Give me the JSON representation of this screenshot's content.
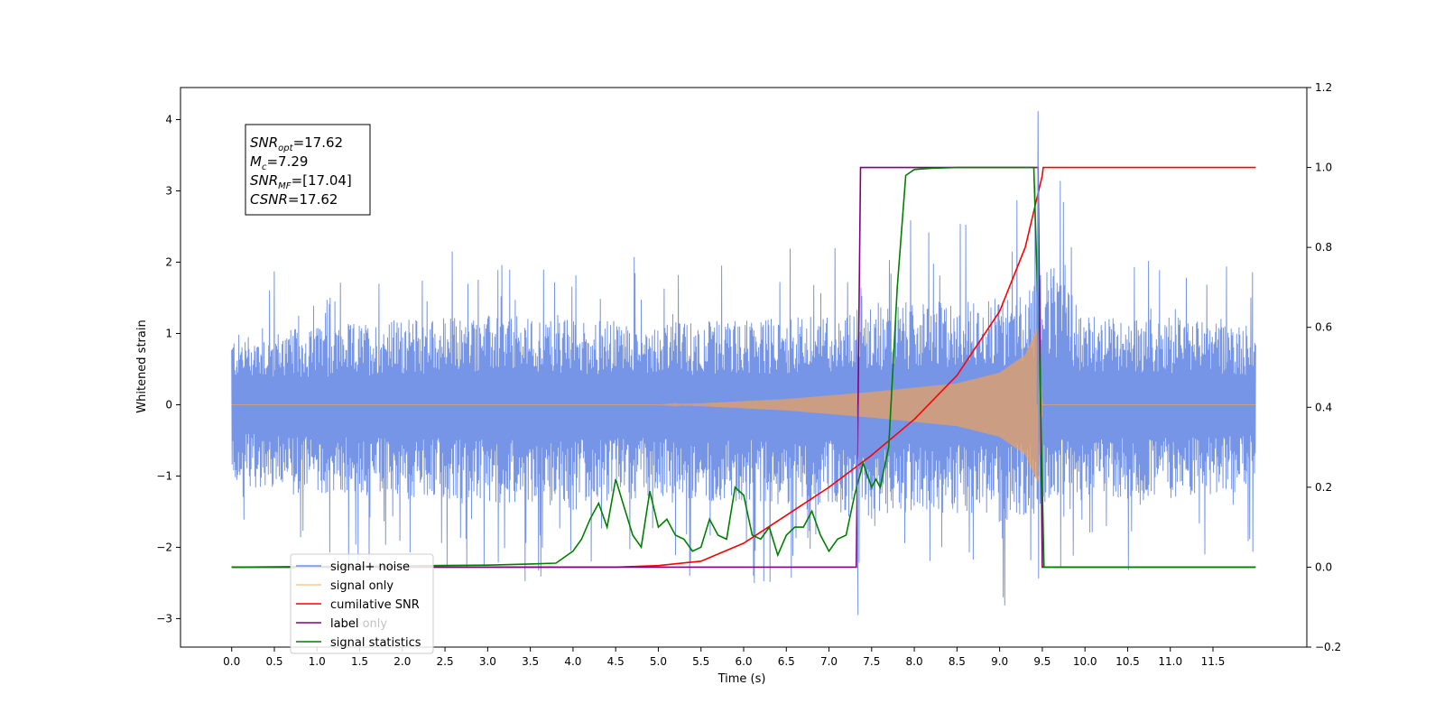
{
  "chart_data": {
    "type": "line",
    "xlabel": "Time (s)",
    "ylabel": "Whitened strain",
    "xlim": [
      -0.6,
      12.6
    ],
    "ylim": [
      -3.4,
      4.45
    ],
    "y2lim": [
      -0.2,
      1.2
    ],
    "xticks": [
      "0.0",
      "0.5",
      "1.0",
      "1.5",
      "2.0",
      "2.5",
      "3.0",
      "3.5",
      "4.0",
      "4.5",
      "5.0",
      "5.5",
      "6.0",
      "6.5",
      "7.0",
      "7.5",
      "8.0",
      "8.5",
      "9.0",
      "9.5",
      "10.0",
      "10.5",
      "11.0",
      "11.5"
    ],
    "yticks": [
      "-3",
      "-2",
      "-1",
      "0",
      "1",
      "2",
      "3",
      "4"
    ],
    "y2ticks": [
      "-0.2",
      "0.0",
      "0.2",
      "0.4",
      "0.6",
      "0.8",
      "1.0",
      "1.2"
    ],
    "grid": false,
    "legend_position": "lower-left",
    "stats": [
      {
        "base": "SNR",
        "sub": "opt",
        "value": "=17.62"
      },
      {
        "base": "M",
        "sub": "c",
        "value": "=7.29"
      },
      {
        "base": "SNR",
        "sub": "MF",
        "value": "=[17.04]"
      },
      {
        "base": "CSNR",
        "sub": "",
        "value": "=17.62"
      }
    ],
    "series": [
      {
        "name": "signal+ noise",
        "color": "#6f8fe6",
        "axis": "left",
        "description_points": {
          "x": [
            0.0,
            0.5,
            1.0,
            2.0,
            3.0,
            4.0,
            5.0,
            6.0,
            7.0,
            7.3,
            8.0,
            9.0,
            9.4,
            9.45,
            10.0,
            11.0,
            12.0
          ],
          "envelope": [
            1.8,
            1.9,
            2.0,
            2.2,
            2.3,
            2.2,
            2.1,
            2.2,
            2.3,
            2.5,
            2.6,
            2.7,
            3.3,
            4.1,
            2.3,
            2.2,
            2.1
          ],
          "low_envelope": [
            -2.0,
            -2.2,
            -2.3,
            -2.4,
            -2.5,
            -2.5,
            -2.4,
            -2.5,
            -2.6,
            -3.0,
            -2.7,
            -3.0,
            -2.8,
            -2.6,
            -2.4,
            -2.4,
            -2.2
          ]
        }
      },
      {
        "name": "signal only",
        "color": "#f5a742",
        "axis": "left",
        "description_points": {
          "x": [
            0.0,
            5.0,
            5.5,
            6.5,
            7.5,
            8.5,
            9.0,
            9.3,
            9.45,
            9.5,
            12.0
          ],
          "amplitude": [
            0.0,
            0.0,
            0.02,
            0.08,
            0.18,
            0.3,
            0.45,
            0.7,
            1.1,
            0.0,
            0.0
          ]
        }
      },
      {
        "name": "cumilative SNR",
        "color": "#ff0000",
        "axis": "right",
        "x": [
          0.0,
          4.5,
          5.0,
          5.5,
          6.0,
          6.5,
          7.0,
          7.5,
          8.0,
          8.5,
          9.0,
          9.3,
          9.5,
          9.51,
          12.0
        ],
        "y": [
          0.0,
          0.0,
          0.004,
          0.015,
          0.06,
          0.13,
          0.2,
          0.28,
          0.37,
          0.48,
          0.64,
          0.8,
          0.98,
          1.0,
          1.0
        ]
      },
      {
        "name": "label",
        "color": "#800080",
        "axis": "right",
        "x": [
          0.0,
          7.32,
          7.37,
          9.45,
          9.5,
          12.0
        ],
        "y": [
          0.0,
          0.0,
          1.0,
          1.0,
          0.0,
          0.0
        ]
      },
      {
        "name": "signal statistics",
        "color": "#008000",
        "axis": "right",
        "x": [
          0.0,
          3.0,
          3.5,
          3.8,
          4.0,
          4.1,
          4.2,
          4.3,
          4.4,
          4.5,
          4.6,
          4.7,
          4.8,
          4.9,
          5.0,
          5.1,
          5.2,
          5.3,
          5.4,
          5.5,
          5.6,
          5.7,
          5.8,
          5.9,
          6.0,
          6.1,
          6.2,
          6.3,
          6.4,
          6.5,
          6.6,
          6.7,
          6.8,
          6.9,
          7.0,
          7.1,
          7.2,
          7.3,
          7.4,
          7.5,
          7.55,
          7.6,
          7.7,
          7.8,
          7.9,
          8.0,
          8.2,
          8.5,
          9.0,
          9.4,
          9.47,
          9.52,
          12.0
        ],
        "y": [
          0.0,
          0.005,
          0.008,
          0.01,
          0.04,
          0.07,
          0.12,
          0.16,
          0.1,
          0.22,
          0.15,
          0.08,
          0.05,
          0.19,
          0.1,
          0.12,
          0.08,
          0.07,
          0.04,
          0.05,
          0.12,
          0.08,
          0.07,
          0.2,
          0.18,
          0.08,
          0.07,
          0.1,
          0.03,
          0.08,
          0.1,
          0.1,
          0.14,
          0.08,
          0.04,
          0.07,
          0.08,
          0.18,
          0.26,
          0.2,
          0.22,
          0.2,
          0.3,
          0.7,
          0.98,
          0.995,
          0.998,
          1.0,
          1.0,
          1.0,
          0.5,
          0.0,
          0.0
        ]
      }
    ]
  },
  "legend": {
    "items": [
      {
        "name": "signal+ noise",
        "color": "#6f8fe6",
        "alpha": 1
      },
      {
        "name": "signal only",
        "color": "#f5a742",
        "alpha": 0.6
      },
      {
        "name": "cumilative SNR",
        "color": "#ff0000",
        "alpha": 1
      },
      {
        "name": "label",
        "color": "#800080",
        "alpha": 1
      },
      {
        "name": "signal statistics",
        "color": "#008000",
        "alpha": 1
      }
    ],
    "overlap_text": "label only"
  }
}
